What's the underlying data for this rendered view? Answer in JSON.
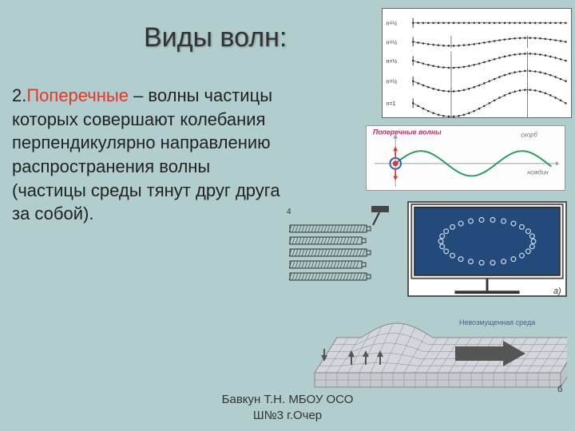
{
  "title": "Виды волн:",
  "body": {
    "num": "2.",
    "highlight": "Поперечные",
    "rest": " – волны частицы которых совершают колебания перпендикулярно направлению распространения волны (частицы среды тянут друг друга за собой)."
  },
  "footer": {
    "line1": "Бавкун Т.Н. МБОУ ОСО",
    "line2": "Ш№3 г.Очер"
  },
  "fig1": {
    "labels": [
      "n=½",
      "n=½",
      "n=½",
      "n=½",
      "n=1"
    ],
    "label_font": 7,
    "stroke": "#333",
    "amp_scale": [
      0,
      5,
      9,
      13,
      17
    ],
    "y_positions": [
      18,
      42,
      66,
      92,
      120
    ]
  },
  "fig2": {
    "title": "Поперечные волны",
    "title_color": "#c82a6b",
    "title_font": 9,
    "axis_color": "#a0a0a0",
    "wave_color": "#2d9b5e",
    "circle_color": "#2a5fb5",
    "marker_color": "#d83a3a",
    "wave_amp": 16,
    "wave_period": 130,
    "y_label": "скорб",
    "x_label": "нождин"
  },
  "fig3": {
    "mark": "4",
    "stroke": "#333",
    "hammer_fill": "#444",
    "bar_rows": 5
  },
  "fig4": {
    "bg": "#224a7a",
    "arc_stroke": "#c7d4e4",
    "mark": "а)"
  },
  "fig5": {
    "label": "Невозмущенная среда",
    "label_font": 9,
    "label_color": "#4e5d84",
    "grid_color": "#888",
    "bg_sheet": "#d3d6dc",
    "arrow_fill": "#555",
    "mark": "б"
  }
}
